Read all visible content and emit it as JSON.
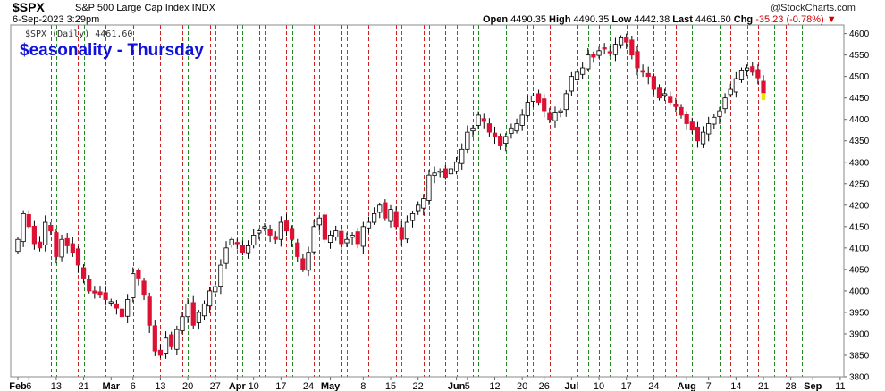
{
  "header": {
    "symbol": "$SPX",
    "description": "S&P 500 Large Cap Index INDX",
    "datetime": "6-Sep-2023 3:29pm",
    "open_label": "Open",
    "open": "4490.35",
    "high_label": "High",
    "high": "4490.35",
    "low_label": "Low",
    "low": "4442.38",
    "last_label": "Last",
    "last": "4461.60",
    "chg_label": "Chg",
    "chg": "-35.23 (-0.78%)",
    "brand": "@StockCharts.com",
    "legend": "$SPX (Daily) 4461.60",
    "overlay_title": "$easonality - Thursday"
  },
  "colors": {
    "up": "#ffffff",
    "down": "#dd1133",
    "thursday_line": "#228822",
    "other_line": "#cc2222",
    "title": "#1111dd",
    "last_bar": "#f2e000"
  },
  "chart_data": {
    "type": "candlestick",
    "title": "$easonality - Thursday",
    "xlabel": "",
    "ylabel": "",
    "ylim": [
      3800,
      4620
    ],
    "y_ticks": [
      3800,
      3850,
      3900,
      3950,
      4000,
      4050,
      4100,
      4150,
      4200,
      4250,
      4300,
      4350,
      4400,
      4450,
      4500,
      4550,
      4600
    ],
    "x_ticks": [
      {
        "label": "Feb",
        "idx": 0,
        "bold": true
      },
      {
        "label": "6",
        "idx": 2
      },
      {
        "label": "13",
        "idx": 7
      },
      {
        "label": "21",
        "idx": 12
      },
      {
        "label": "Mar",
        "idx": 17,
        "bold": true
      },
      {
        "label": "6",
        "idx": 21
      },
      {
        "label": "13",
        "idx": 26
      },
      {
        "label": "20",
        "idx": 31
      },
      {
        "label": "27",
        "idx": 36
      },
      {
        "label": "Apr",
        "idx": 40,
        "bold": true
      },
      {
        "label": "10",
        "idx": 43
      },
      {
        "label": "17",
        "idx": 48
      },
      {
        "label": "24",
        "idx": 53
      },
      {
        "label": "May",
        "idx": 57,
        "bold": true
      },
      {
        "label": "8",
        "idx": 63
      },
      {
        "label": "15",
        "idx": 68
      },
      {
        "label": "22",
        "idx": 73
      },
      {
        "label": "Jun",
        "idx": 80,
        "bold": true
      },
      {
        "label": "5",
        "idx": 82
      },
      {
        "label": "12",
        "idx": 87
      },
      {
        "label": "20",
        "idx": 92
      },
      {
        "label": "26",
        "idx": 96
      },
      {
        "label": "Jul",
        "idx": 101,
        "bold": true
      },
      {
        "label": "10",
        "idx": 106
      },
      {
        "label": "17",
        "idx": 111
      },
      {
        "label": "24",
        "idx": 116
      },
      {
        "label": "Aug",
        "idx": 122,
        "bold": true
      },
      {
        "label": "7",
        "idx": 126
      },
      {
        "label": "14",
        "idx": 131
      },
      {
        "label": "21",
        "idx": 136
      },
      {
        "label": "28",
        "idx": 141
      },
      {
        "label": "Sep",
        "idx": 145,
        "bold": true
      },
      {
        "label": "11",
        "idx": 150
      }
    ],
    "thursday_idx": [
      2,
      7,
      12,
      16,
      21,
      26,
      31,
      36,
      41,
      45,
      50,
      55,
      60,
      65,
      70,
      75,
      80,
      84,
      89,
      94,
      99,
      104,
      108,
      113,
      118,
      123,
      128,
      133,
      138,
      143
    ],
    "other_idx": [
      6,
      11,
      16,
      21,
      26,
      30,
      35,
      40,
      44,
      49,
      54,
      59,
      64,
      69,
      74,
      78,
      83,
      88,
      93,
      97,
      102,
      106,
      111,
      116,
      120,
      125,
      130,
      135,
      140,
      145
    ],
    "closes": [
      4120,
      4180,
      4150,
      4110,
      4100,
      4160,
      4140,
      4080,
      4120,
      4105,
      4090,
      4060,
      4030,
      4000,
      3995,
      3990,
      3980,
      3975,
      3960,
      3940,
      3980,
      4040,
      4030,
      3990,
      3920,
      3860,
      3850,
      3890,
      3870,
      3910,
      3940,
      3970,
      3920,
      3950,
      3970,
      4000,
      4010,
      4060,
      4100,
      4120,
      4110,
      4090,
      4105,
      4130,
      4140,
      4150,
      4130,
      4120,
      4160,
      4140,
      4120,
      4080,
      4050,
      4090,
      4150,
      4170,
      4120,
      4130,
      4140,
      4110,
      4120,
      4130,
      4110,
      4150,
      4160,
      4180,
      4200,
      4170,
      4190,
      4150,
      4120,
      4160,
      4180,
      4200,
      4215,
      4270,
      4275,
      4280,
      4265,
      4285,
      4300,
      4330,
      4370,
      4380,
      4410,
      4395,
      4370,
      4360,
      4340,
      4360,
      4380,
      4390,
      4410,
      4440,
      4455,
      4440,
      4420,
      4400,
      4415,
      4420,
      4460,
      4500,
      4510,
      4520,
      4550,
      4545,
      4560,
      4565,
      4555,
      4575,
      4590,
      4580,
      4550,
      4520,
      4510,
      4500,
      4470,
      4450,
      4460,
      4440,
      4430,
      4410,
      4390,
      4375,
      4350,
      4370,
      4390,
      4405,
      4420,
      4450,
      4470,
      4495,
      4515,
      4520,
      4510,
      4497,
      4461.6
    ]
  }
}
